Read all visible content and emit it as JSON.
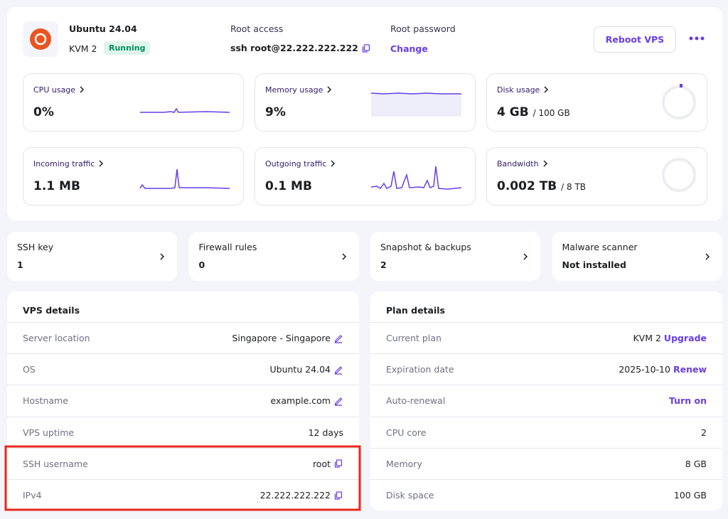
{
  "header": {
    "os_name": "Ubuntu 24.04",
    "plan": "KVM 2",
    "status": "Running",
    "root_access_label": "Root access",
    "root_access_value": "ssh root@22.222.222.222",
    "root_password_label": "Root password",
    "root_password_action": "Change",
    "reboot_button": "Reboot VPS"
  },
  "metrics": [
    {
      "label": "CPU usage",
      "value": "0%"
    },
    {
      "label": "Memory usage",
      "value": "9%"
    },
    {
      "label": "Disk usage",
      "value": "4 GB",
      "unit": "/ 100 GB"
    },
    {
      "label": "Incoming traffic",
      "value": "1.1 MB"
    },
    {
      "label": "Outgoing traffic",
      "value": "0.1 MB"
    },
    {
      "label": "Bandwidth",
      "value": "0.002 TB",
      "unit": "/ 8 TB"
    }
  ],
  "shortcuts": [
    {
      "label": "SSH key",
      "value": "1"
    },
    {
      "label": "Firewall rules",
      "value": "0"
    },
    {
      "label": "Snapshot & backups",
      "value": "2"
    },
    {
      "label": "Malware scanner",
      "value": "Not installed"
    }
  ],
  "vps_details": {
    "title": "VPS details",
    "rows": [
      {
        "label": "Server location",
        "value": "Singapore - Singapore",
        "icon": "edit"
      },
      {
        "label": "OS",
        "value": "Ubuntu 24.04",
        "icon": "edit"
      },
      {
        "label": "Hostname",
        "value": "example.com",
        "icon": "edit"
      },
      {
        "label": "VPS uptime",
        "value": "12 days"
      },
      {
        "label": "SSH username",
        "value": "root",
        "icon": "copy"
      },
      {
        "label": "IPv4",
        "value": "22.222.222.222",
        "icon": "copy"
      }
    ]
  },
  "plan_details": {
    "title": "Plan details",
    "rows": [
      {
        "label": "Current plan",
        "value": "KVM 2",
        "action": "Upgrade"
      },
      {
        "label": "Expiration date",
        "value": "2025-10-10",
        "action": "Renew"
      },
      {
        "label": "Auto-renewal",
        "action": "Turn on"
      },
      {
        "label": "CPU core",
        "value": "2"
      },
      {
        "label": "Memory",
        "value": "8 GB"
      },
      {
        "label": "Disk space",
        "value": "100 GB"
      }
    ]
  }
}
